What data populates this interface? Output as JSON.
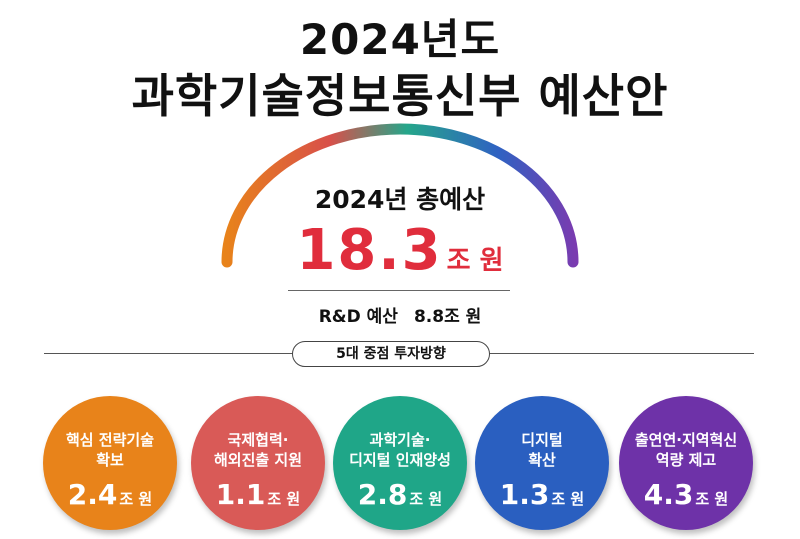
{
  "header": {
    "year_line": "2024년도",
    "title": "과학기술정보통신부 예산안"
  },
  "total": {
    "label": "2024년 총예산",
    "amount": "18.3",
    "unit": "조 원"
  },
  "rnd": {
    "label": "R&D 예산",
    "amount": "8.8조 원"
  },
  "section_pill": "5대 중점 투자방향",
  "colors": {
    "accent_red": "#e02d3c",
    "arc_gradient": [
      "#e8831a",
      "#d8504a",
      "#25a68a",
      "#2f62c2",
      "#7a3bb0"
    ]
  },
  "directions": [
    {
      "line1": "핵심 전략기술",
      "line2": "확보",
      "amount": "2.4",
      "unit": "조 원",
      "color": "#e8831a"
    },
    {
      "line1": "국제협력·",
      "line2": "해외진출 지원",
      "amount": "1.1",
      "unit": "조 원",
      "color": "#d95a57"
    },
    {
      "line1": "과학기술·",
      "line2": "디지털 인재양성",
      "amount": "2.8",
      "unit": "조 원",
      "color": "#1fa688"
    },
    {
      "line1": "디지털",
      "line2": "확산",
      "amount": "1.3",
      "unit": "조 원",
      "color": "#2a5fc0"
    },
    {
      "line1": "출연연·지역혁신",
      "line2": "역량 제고",
      "amount": "4.3",
      "unit": "조 원",
      "color": "#6e32a8"
    }
  ]
}
